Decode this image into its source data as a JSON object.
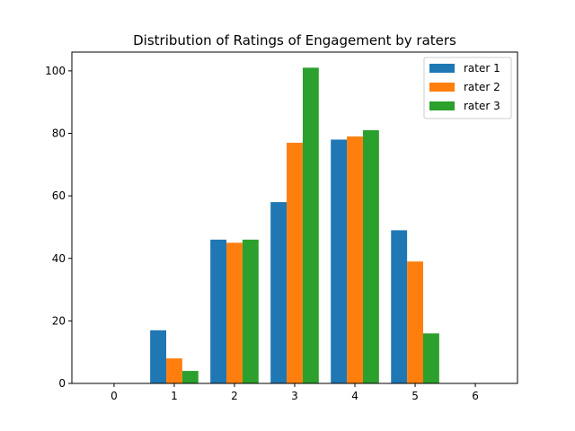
{
  "chart_data": {
    "type": "bar",
    "title": "Distribution of Ratings of Engagement by raters",
    "xlabel": "",
    "ylabel": "",
    "x_ticks": [
      "0",
      "1",
      "2",
      "3",
      "4",
      "5",
      "6"
    ],
    "y_ticks": [
      "0",
      "20",
      "40",
      "60",
      "80",
      "100"
    ],
    "xlim": [
      -0.7,
      6.7
    ],
    "ylim": [
      0,
      106
    ],
    "grid": false,
    "legend_position": "top-right",
    "series": [
      {
        "name": "rater 1",
        "color": "#1f77b4",
        "x": [
          1,
          2,
          3,
          4,
          5
        ],
        "values": [
          17,
          46,
          58,
          78,
          49
        ]
      },
      {
        "name": "rater 2",
        "color": "#ff7f0e",
        "x": [
          1,
          2,
          3,
          4,
          5
        ],
        "values": [
          8,
          45,
          77,
          79,
          39
        ]
      },
      {
        "name": "rater 3",
        "color": "#2ca02c",
        "x": [
          1,
          2,
          3,
          4,
          5
        ],
        "values": [
          4,
          46,
          101,
          81,
          16
        ]
      }
    ]
  }
}
